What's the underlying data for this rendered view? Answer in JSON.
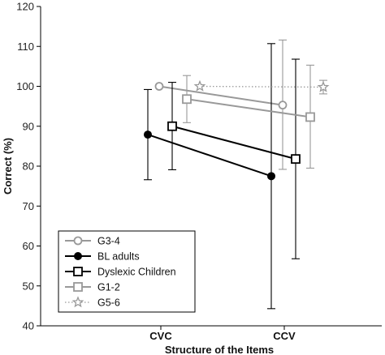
{
  "chart_data": {
    "type": "line",
    "title": "",
    "xlabel": "Structure of the Items",
    "ylabel": "Correct (%)",
    "categories": [
      "CVC",
      "CCV"
    ],
    "ylim": [
      40,
      120
    ],
    "yticks": [
      40,
      50,
      60,
      70,
      80,
      90,
      100,
      110,
      120
    ],
    "grid": false,
    "legend_position": "bottom-left",
    "series": [
      {
        "name": "G3-4",
        "marker": "open-circle",
        "color": "#999999",
        "line_style": "solid",
        "values": [
          100,
          95.3
        ],
        "error": [
          null,
          [
            79.2,
            111.6
          ]
        ]
      },
      {
        "name": "BL adults",
        "marker": "filled-circle",
        "color": "#000000",
        "line_style": "solid",
        "values": [
          87.9,
          77.5
        ],
        "error": [
          [
            76.6,
            99.2
          ],
          [
            44.3,
            110.7
          ]
        ]
      },
      {
        "name": "Dyslexic Children",
        "marker": "open-square",
        "color": "#000000",
        "line_style": "solid",
        "values": [
          90,
          81.8
        ],
        "error": [
          [
            79.1,
            101
          ],
          [
            56.8,
            106.8
          ]
        ]
      },
      {
        "name": "G1-2",
        "marker": "open-square",
        "color": "#999999",
        "line_style": "solid",
        "values": [
          96.8,
          92.3
        ],
        "error": [
          [
            90.9,
            102.7
          ],
          [
            79.5,
            105.3
          ]
        ]
      },
      {
        "name": "G5-6",
        "marker": "star",
        "color": "#999999",
        "line_style": "dotted",
        "values": [
          100,
          99.8
        ],
        "error": [
          null,
          [
            98.1,
            101.5
          ]
        ]
      }
    ]
  }
}
